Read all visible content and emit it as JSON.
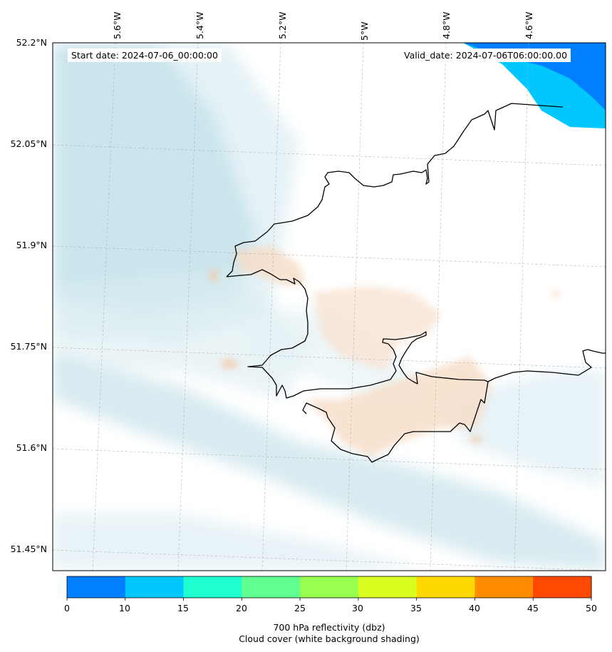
{
  "map": {
    "start_date": "Start date: 2024-07-06_00:00:00",
    "valid_date": "Valid_date: 2024-07-06T06:00:00.00",
    "lon_labels": [
      "5.6°W",
      "5.4°W",
      "5.2°W",
      "5°W",
      "4.8°W",
      "4.6°W"
    ],
    "lat_labels": [
      "52.2°N",
      "52.05°N",
      "51.9°N",
      "51.75°N",
      "51.6°N",
      "51.45°N"
    ],
    "coastline_color": "#000000",
    "cloud_color": "#b9dde7",
    "low_reflectivity_color": "#f6dcc6"
  },
  "colorbar": {
    "ticks": [
      "0",
      "10",
      "15",
      "20",
      "25",
      "30",
      "35",
      "40",
      "45",
      "50"
    ],
    "colors": [
      "#0080ff",
      "#00c8ff",
      "#20ffd0",
      "#60ff90",
      "#98ff50",
      "#d8ff20",
      "#ffd800",
      "#ff8c00",
      "#ff4800"
    ],
    "title_line1": "700 hPa reflectivity (dbz)",
    "title_line2": "Cloud cover (white background shading)"
  }
}
